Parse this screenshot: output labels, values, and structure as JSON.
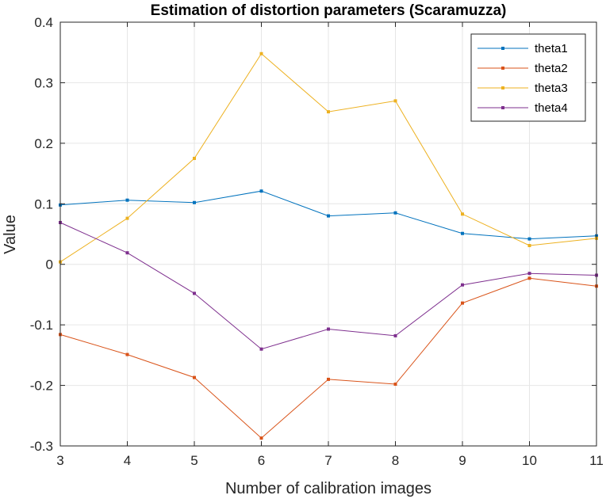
{
  "chart_data": {
    "type": "line",
    "title": "Estimation of distortion parameters (Scaramuzza)",
    "xlabel": "Number of calibration images",
    "ylabel": "Value",
    "xlim": [
      3,
      11
    ],
    "ylim": [
      -0.3,
      0.4
    ],
    "x": [
      3,
      4,
      5,
      6,
      7,
      8,
      9,
      10,
      11
    ],
    "xticks": [
      "3",
      "4",
      "5",
      "6",
      "7",
      "8",
      "9",
      "10",
      "11"
    ],
    "yticks": [
      "-0.3",
      "-0.2",
      "-0.1",
      "0",
      "0.1",
      "0.2",
      "0.3",
      "0.4"
    ],
    "grid": true,
    "legend_position": "top-right",
    "series": [
      {
        "name": "theta1",
        "color": "#0072BD",
        "values": [
          0.098,
          0.106,
          0.102,
          0.121,
          0.08,
          0.085,
          0.051,
          0.042,
          0.047
        ]
      },
      {
        "name": "theta2",
        "color": "#D95319",
        "values": [
          -0.116,
          -0.149,
          -0.187,
          -0.287,
          -0.19,
          -0.198,
          -0.064,
          -0.023,
          -0.036
        ]
      },
      {
        "name": "theta3",
        "color": "#EDB120",
        "values": [
          0.004,
          0.076,
          0.175,
          0.348,
          0.252,
          0.27,
          0.083,
          0.031,
          0.043
        ]
      },
      {
        "name": "theta4",
        "color": "#7E2F8E",
        "values": [
          0.069,
          0.019,
          -0.048,
          -0.14,
          -0.107,
          -0.118,
          -0.034,
          -0.015,
          -0.018
        ]
      }
    ]
  }
}
